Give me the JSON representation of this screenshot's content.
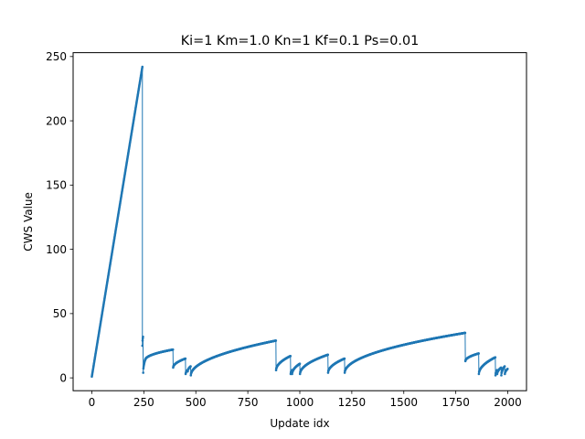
{
  "chart_data": {
    "type": "line",
    "title": "Ki=1 Km=1.0 Kn=1 Kf=0.1 Ps=0.01",
    "xlabel": "Update idx",
    "ylabel": "CWS Value",
    "xlim": [
      -90,
      2090
    ],
    "ylim": [
      -10,
      253
    ],
    "xticks": [
      0,
      250,
      500,
      750,
      1000,
      1250,
      1500,
      1750,
      2000
    ],
    "yticks": [
      0,
      50,
      100,
      150,
      200,
      250
    ],
    "grid": false,
    "legend": "none",
    "line_color": "#1f77b4",
    "marker": "point",
    "segments": [
      {
        "kind": "linear",
        "x0": 0,
        "x1": 243,
        "y0": 1,
        "y1": 242
      },
      {
        "kind": "curve",
        "x0": 243,
        "x1": 246,
        "y0": 25,
        "y1": 32
      },
      {
        "kind": "curve",
        "x0": 247,
        "x1": 256,
        "y0": 4,
        "y1": 14
      },
      {
        "kind": "curve",
        "x0": 257,
        "x1": 390,
        "y0": 14,
        "y1": 22
      },
      {
        "kind": "curve",
        "x0": 391,
        "x1": 450,
        "y0": 8,
        "y1": 15
      },
      {
        "kind": "curve",
        "x0": 451,
        "x1": 460,
        "y0": 3,
        "y1": 6
      },
      {
        "kind": "curve",
        "x0": 461,
        "x1": 475,
        "y0": 5,
        "y1": 9
      },
      {
        "kind": "curve",
        "x0": 476,
        "x1": 885,
        "y0": 2,
        "y1": 29
      },
      {
        "kind": "curve",
        "x0": 886,
        "x1": 955,
        "y0": 6,
        "y1": 17
      },
      {
        "kind": "curve",
        "x0": 956,
        "x1": 962,
        "y0": 3,
        "y1": 6
      },
      {
        "kind": "curve",
        "x0": 963,
        "x1": 1000,
        "y0": 3,
        "y1": 11
      },
      {
        "kind": "curve",
        "x0": 1001,
        "x1": 1135,
        "y0": 3,
        "y1": 18
      },
      {
        "kind": "curve",
        "x0": 1136,
        "x1": 1215,
        "y0": 4,
        "y1": 15
      },
      {
        "kind": "curve",
        "x0": 1216,
        "x1": 1795,
        "y0": 4,
        "y1": 35
      },
      {
        "kind": "curve",
        "x0": 1796,
        "x1": 1860,
        "y0": 13,
        "y1": 19
      },
      {
        "kind": "curve",
        "x0": 1861,
        "x1": 1940,
        "y0": 3,
        "y1": 16
      },
      {
        "kind": "curve",
        "x0": 1941,
        "x1": 1948,
        "y0": 2,
        "y1": 6
      },
      {
        "kind": "curve",
        "x0": 1949,
        "x1": 1968,
        "y0": 3,
        "y1": 8
      },
      {
        "kind": "curve",
        "x0": 1969,
        "x1": 1985,
        "y0": 2,
        "y1": 9
      },
      {
        "kind": "curve",
        "x0": 1986,
        "x1": 1999,
        "y0": 3,
        "y1": 7
      }
    ]
  }
}
